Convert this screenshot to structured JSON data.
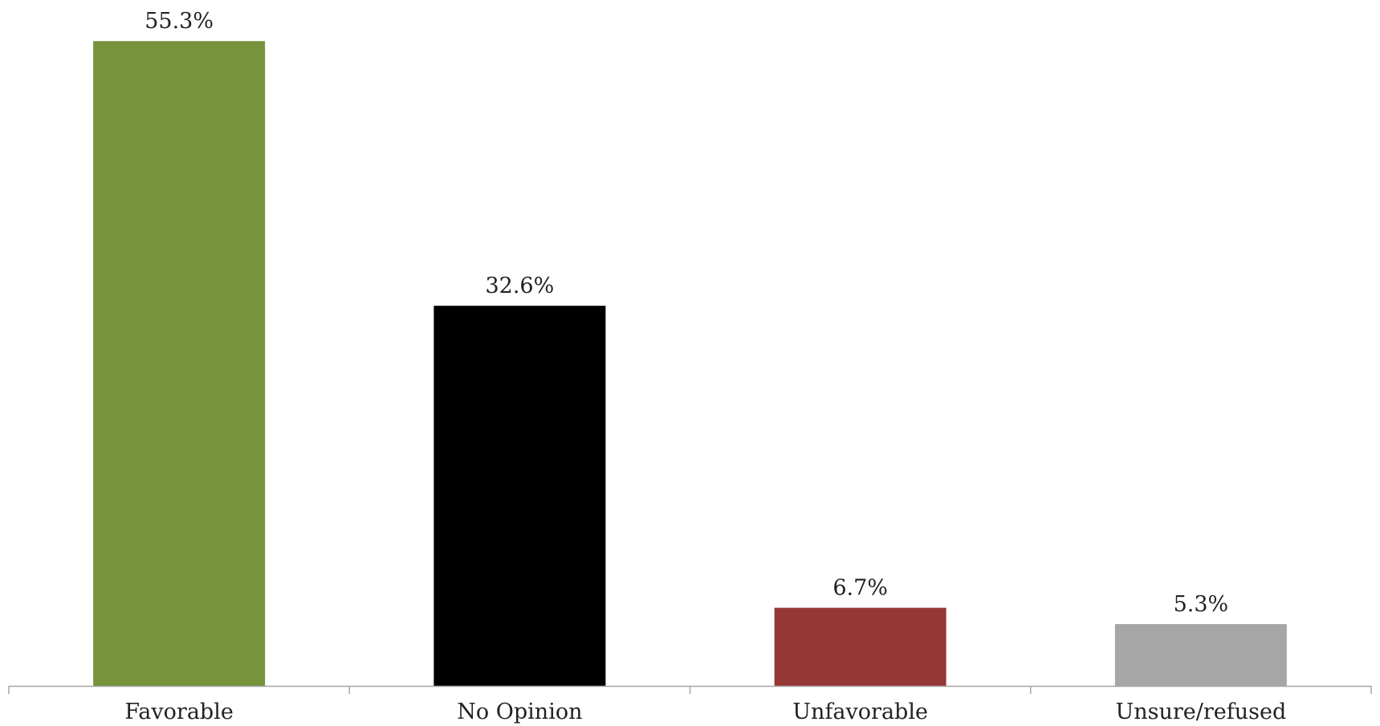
{
  "chart_data": {
    "type": "bar",
    "title": "",
    "xlabel": "",
    "ylabel": "",
    "categories": [
      "Favorable",
      "No Opinion",
      "Unfavorable",
      "Unsure/refused"
    ],
    "values": [
      55.3,
      32.6,
      6.7,
      5.3
    ],
    "value_labels": [
      "55.3%",
      "32.6%",
      "6.7%",
      "5.3%"
    ],
    "bar_colors": [
      "#77933c",
      "#000000",
      "#953735",
      "#a6a6a6"
    ],
    "axis_color": "#a6a6a6",
    "ylim": [
      0,
      58
    ],
    "grid": false,
    "legend": "none",
    "unit": "%"
  }
}
